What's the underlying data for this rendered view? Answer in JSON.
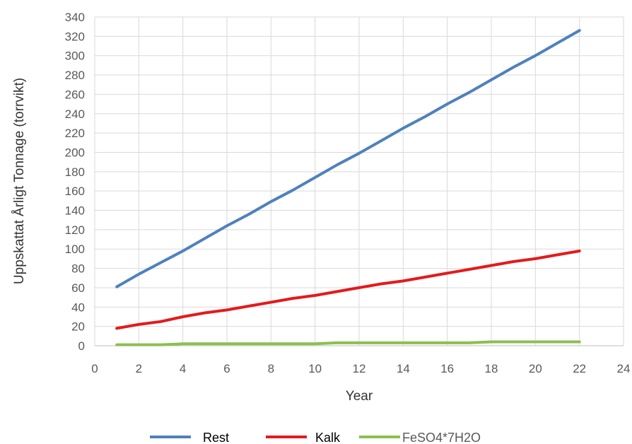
{
  "chart_data": {
    "type": "line",
    "xlabel": "Year",
    "ylabel": "Uppskattat Årligt Tonnage (torrvikt)",
    "xlim": [
      0,
      24
    ],
    "ylim": [
      0,
      340
    ],
    "x_ticks": [
      "0",
      "2",
      "4",
      "6",
      "8",
      "10",
      "12",
      "14",
      "16",
      "18",
      "20",
      "22",
      "24"
    ],
    "y_ticks": [
      "0",
      "20",
      "40",
      "60",
      "80",
      "100",
      "120",
      "140",
      "160",
      "180",
      "200",
      "220",
      "240",
      "260",
      "280",
      "300",
      "320",
      "340"
    ],
    "grid": true,
    "legend_position": "bottom",
    "x": [
      1,
      2,
      3,
      4,
      5,
      6,
      7,
      8,
      9,
      10,
      11,
      12,
      13,
      14,
      15,
      16,
      17,
      18,
      19,
      20,
      21,
      22
    ],
    "series": [
      {
        "name": "Rest",
        "color": "#4f81bd",
        "values": [
          61,
          74,
          86,
          98,
          111,
          124,
          136,
          149,
          161,
          174,
          187,
          199,
          212,
          225,
          237,
          250,
          262,
          275,
          288,
          300,
          313,
          326
        ]
      },
      {
        "name": "Kalk",
        "color": "#e41a1c",
        "values": [
          18,
          22,
          25,
          30,
          34,
          37,
          41,
          45,
          49,
          52,
          56,
          60,
          64,
          67,
          71,
          75,
          79,
          83,
          87,
          90,
          94,
          98
        ]
      },
      {
        "name": "FeSO4*7H2O",
        "color": "#8cbf4f",
        "values": [
          1,
          1,
          1,
          2,
          2,
          2,
          2,
          2,
          2,
          2,
          3,
          3,
          3,
          3,
          3,
          3,
          3,
          4,
          4,
          4,
          4,
          4
        ]
      }
    ]
  }
}
